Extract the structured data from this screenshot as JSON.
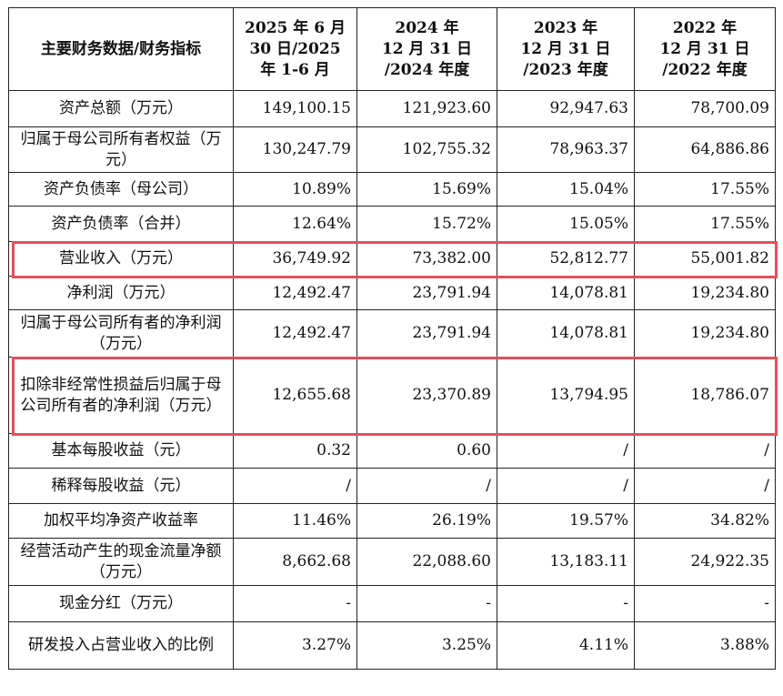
{
  "table": {
    "headers": [
      "主要财务数据/财务指标",
      "2025 年 6 月\n30 日/2025\n年 1-6 月",
      "2024 年\n12 月 31 日\n/2024 年度",
      "2023 年\n12 月 31 日\n/2023 年度",
      "2022 年\n12 月 31 日\n/2022 年度"
    ],
    "rows": [
      {
        "label": "资产总额（万元）",
        "values": [
          "149,100.15",
          "121,923.60",
          "92,947.63",
          "78,700.09"
        ]
      },
      {
        "label": "归属于母公司所有者权益（万元）",
        "values": [
          "130,247.79",
          "102,755.32",
          "78,963.37",
          "64,886.86"
        ]
      },
      {
        "label": "资产负债率（母公司）",
        "values": [
          "10.89%",
          "15.69%",
          "15.04%",
          "17.55%"
        ]
      },
      {
        "label": "资产负债率（合并）",
        "values": [
          "12.64%",
          "15.72%",
          "15.05%",
          "17.55%"
        ]
      },
      {
        "label": "营业收入（万元）",
        "values": [
          "36,749.92",
          "73,382.00",
          "52,812.77",
          "55,001.82"
        ],
        "highlighted": true
      },
      {
        "label": "净利润（万元）",
        "values": [
          "12,492.47",
          "23,791.94",
          "14,078.81",
          "19,234.80"
        ]
      },
      {
        "label": "归属于母公司所有者的净利润（万元）",
        "values": [
          "12,492.47",
          "23,791.94",
          "14,078.81",
          "19,234.80"
        ]
      },
      {
        "label": "扣除非经常性损益后归属于母公司所有者的净利润（万元）",
        "values": [
          "12,655.68",
          "23,370.89",
          "13,794.95",
          "18,786.07"
        ],
        "highlighted": true
      },
      {
        "label": "基本每股收益（元）",
        "values": [
          "0.32",
          "0.60",
          "/",
          "/"
        ]
      },
      {
        "label": "稀释每股收益（元）",
        "values": [
          "/",
          "/",
          "/",
          "/"
        ]
      },
      {
        "label": "加权平均净资产收益率",
        "values": [
          "11.46%",
          "26.19%",
          "19.57%",
          "34.82%"
        ]
      },
      {
        "label": "经营活动产生的现金流量净额（万元）",
        "values": [
          "8,662.68",
          "22,088.60",
          "13,183.11",
          "24,922.35"
        ]
      },
      {
        "label": "现金分红（万元）",
        "values": [
          "-",
          "-",
          "-",
          "-"
        ]
      },
      {
        "label": "研发投入占营业收入的比例",
        "values": [
          "3.27%",
          "3.25%",
          "4.11%",
          "3.88%"
        ]
      }
    ]
  },
  "colors": {
    "highlight_border": "#e2505b",
    "grid": "#222222"
  }
}
